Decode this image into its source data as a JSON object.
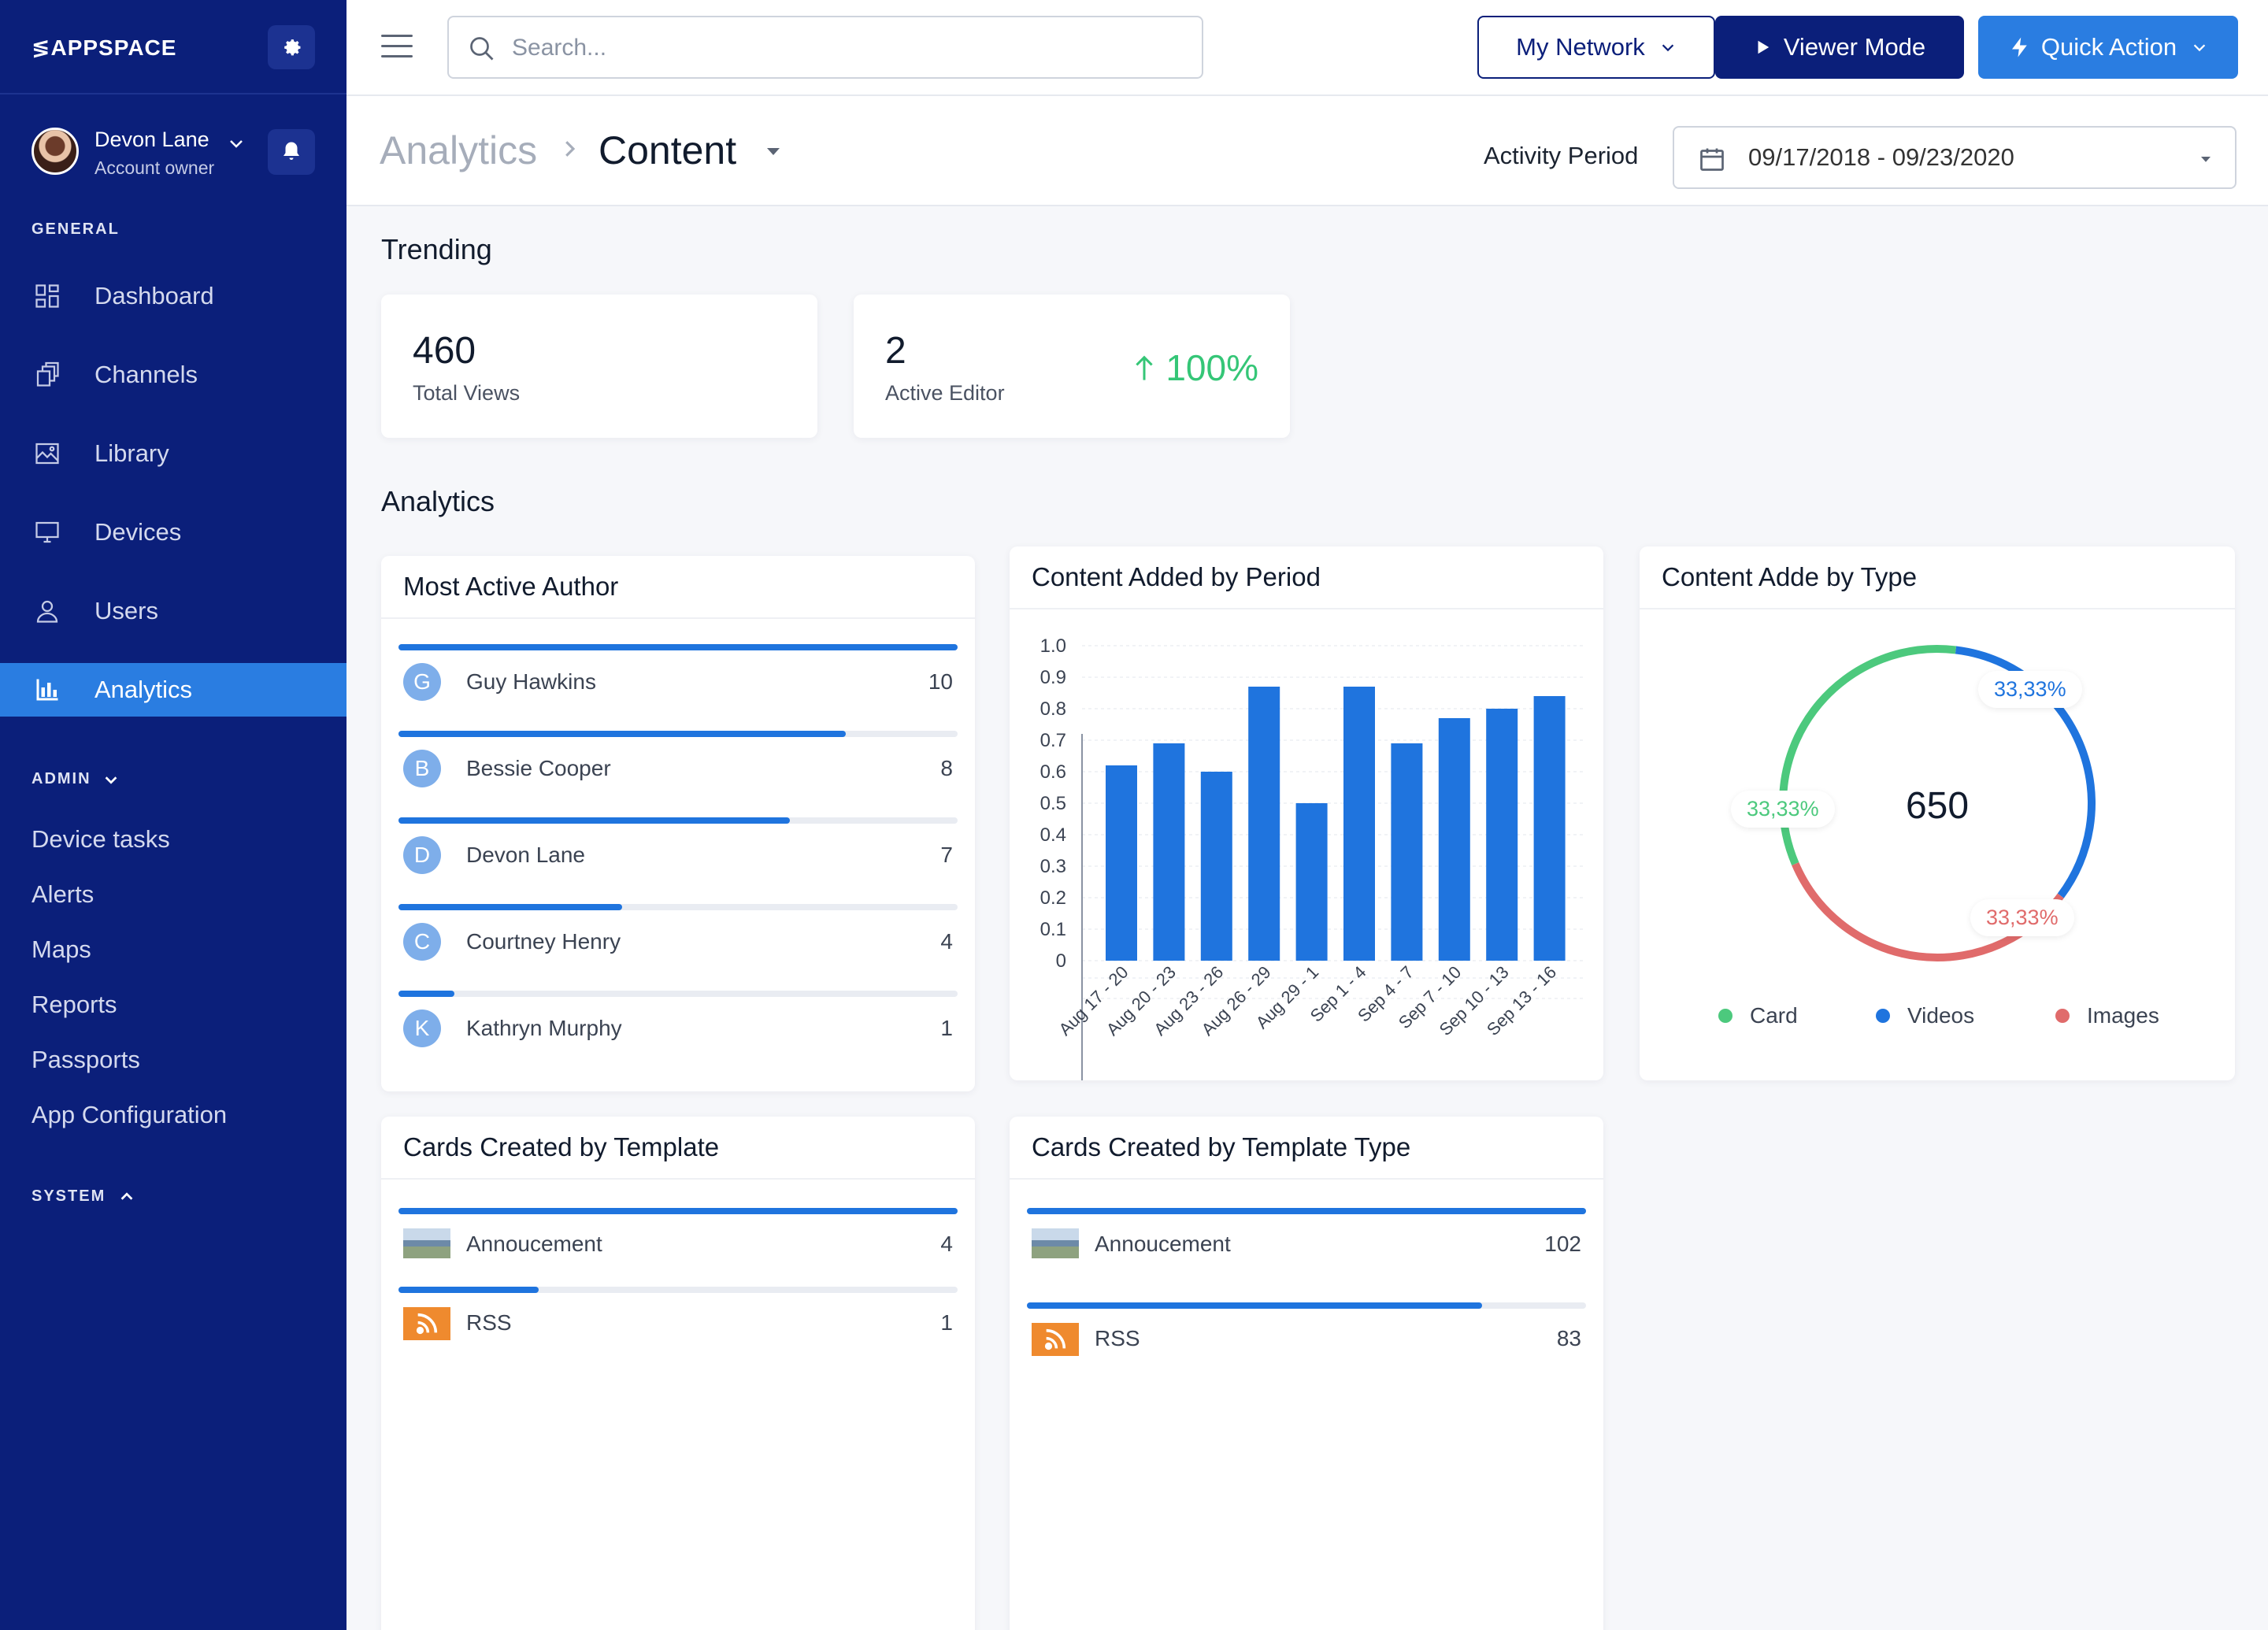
{
  "app": {
    "logo": "APPSPACE"
  },
  "user": {
    "name": "Devon Lane",
    "role": "Account owner"
  },
  "sidebar": {
    "general_label": "GENERAL",
    "items": [
      {
        "label": "Dashboard",
        "icon": "dashboard-icon"
      },
      {
        "label": "Channels",
        "icon": "channels-icon"
      },
      {
        "label": "Library",
        "icon": "library-icon"
      },
      {
        "label": "Devices",
        "icon": "devices-icon"
      },
      {
        "label": "Users",
        "icon": "users-icon"
      },
      {
        "label": "Analytics",
        "icon": "analytics-icon",
        "active": true
      }
    ],
    "admin_label": "ADMIN",
    "admin_items": [
      "Device tasks",
      "Alerts",
      "Maps",
      "Reports",
      "Passports",
      "App Configuration"
    ],
    "system_label": "SYSTEM"
  },
  "topbar": {
    "search_placeholder": "Search...",
    "network_label": "My Network",
    "viewer_label": "Viewer Mode",
    "quick_label": "Quick Action"
  },
  "header": {
    "breadcrumb_parent": "Analytics",
    "breadcrumb_current": "Content",
    "period_label": "Activity Period",
    "period_value": "09/17/2018 - 09/23/2020"
  },
  "trending": {
    "title": "Trending",
    "total_views": {
      "value": "460",
      "label": "Total Views"
    },
    "active_editor": {
      "value": "2",
      "label": "Active Editor",
      "trend": "100%"
    }
  },
  "analytics": {
    "title": "Analytics"
  },
  "most_active_author": {
    "title": "Most Active Author",
    "max": 10,
    "rows": [
      {
        "initial": "G",
        "name": "Guy Hawkins",
        "value": 10
      },
      {
        "initial": "B",
        "name": "Bessie Cooper",
        "value": 8
      },
      {
        "initial": "D",
        "name": "Devon Lane",
        "value": 7
      },
      {
        "initial": "C",
        "name": "Courtney Henry",
        "value": 4
      },
      {
        "initial": "K",
        "name": "Kathryn Murphy",
        "value": 1
      }
    ]
  },
  "content_by_period": {
    "title": "Content Added by Period",
    "chart_data": {
      "type": "bar",
      "categories": [
        "Aug 17 - 20",
        "Aug 20 - 23",
        "Aug 23 - 26",
        "Aug 26 - 29",
        "Aug 29 - 1",
        "Sep 1 - 4",
        "Sep 4 - 7",
        "Sep 7 - 10",
        "Sep 10 - 13",
        "Sep 13 - 16"
      ],
      "values": [
        0.62,
        0.69,
        0.6,
        0.87,
        0.5,
        0.87,
        0.69,
        0.77,
        0.8,
        0.84
      ],
      "yticks": [
        "1.0",
        "0.9",
        "0.8",
        "0.7",
        "0.6",
        "0.5",
        "0.4",
        "0.3",
        "0.2",
        "0.1",
        "0"
      ],
      "ylim": [
        0,
        1.0
      ],
      "color": "#1f74de"
    }
  },
  "content_by_type": {
    "title": "Content Adde by Type",
    "total": "650",
    "chart_data": {
      "type": "pie",
      "labels": [
        "Card",
        "Videos",
        "Images"
      ],
      "values": [
        33.33,
        33.33,
        33.33
      ],
      "value_labels": [
        "33,33%",
        "33,33%",
        "33,33%"
      ],
      "colors": [
        "#4cc97d",
        "#1f74de",
        "#e06b6b"
      ]
    }
  },
  "cards_by_template": {
    "title": "Cards Created by Template",
    "max": 4,
    "rows": [
      {
        "name": "Annoucement",
        "value": 4,
        "thumb": "photo"
      },
      {
        "name": "RSS",
        "value": 1,
        "thumb": "rss"
      }
    ]
  },
  "cards_by_template_type": {
    "title": "Cards Created by Template Type",
    "max": 102,
    "rows": [
      {
        "name": "Annoucement",
        "value": 102,
        "thumb": "photo"
      },
      {
        "name": "RSS",
        "value": 83,
        "thumb": "rss"
      }
    ]
  }
}
